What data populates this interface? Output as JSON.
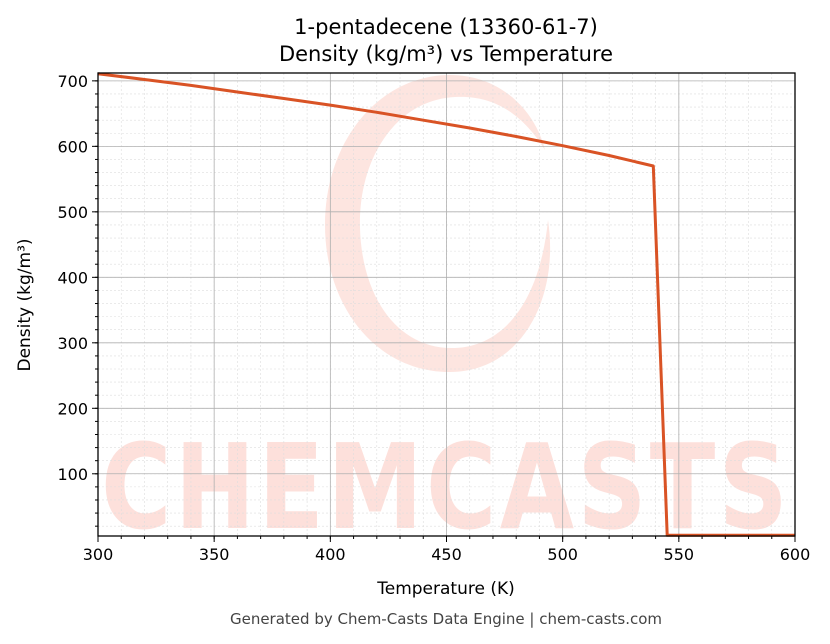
{
  "chart_data": {
    "type": "line",
    "title": "1-pentadecene (13360-61-7)",
    "subtitle": "Density (kg/m³) vs Temperature",
    "xlabel": "Temperature (K)",
    "ylabel": "Density (kg/m³)",
    "xlim": [
      300,
      600
    ],
    "ylim": [
      5,
      712
    ],
    "x_ticks": [
      "300",
      "350",
      "400",
      "450",
      "500",
      "550",
      "600"
    ],
    "y_ticks": [
      "100",
      "200",
      "300",
      "400",
      "500",
      "600",
      "700"
    ],
    "x_tick_values": [
      300,
      350,
      400,
      450,
      500,
      550,
      600
    ],
    "y_tick_values": [
      100,
      200,
      300,
      400,
      500,
      600,
      700
    ],
    "grid": true,
    "series": [
      {
        "color": "#d95325",
        "x": [
          300,
          320,
          340,
          360,
          380,
          400,
          420,
          440,
          460,
          480,
          500,
          520,
          539,
          545,
          560,
          580,
          600
        ],
        "y": [
          711,
          702,
          693,
          683,
          673,
          663,
          652,
          640,
          628,
          615,
          601,
          586,
          570,
          6,
          6,
          6,
          6
        ]
      }
    ]
  },
  "watermark": "CHEMCASTS",
  "footer": "Generated by Chem-Casts Data Engine | chem-casts.com"
}
